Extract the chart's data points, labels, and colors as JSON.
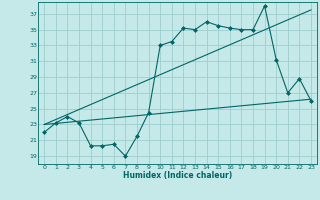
{
  "background_color": "#c5e8e8",
  "grid_color": "#9ecece",
  "line_color": "#006666",
  "xlabel": "Humidex (Indice chaleur)",
  "xlim": [
    -0.5,
    23.5
  ],
  "ylim": [
    18.0,
    38.5
  ],
  "yticks": [
    19,
    21,
    23,
    25,
    27,
    29,
    31,
    33,
    35,
    37
  ],
  "xticks": [
    0,
    1,
    2,
    3,
    4,
    5,
    6,
    7,
    8,
    9,
    10,
    11,
    12,
    13,
    14,
    15,
    16,
    17,
    18,
    19,
    20,
    21,
    22,
    23
  ],
  "series1_x": [
    0,
    1,
    2,
    3,
    4,
    5,
    6,
    7,
    8,
    9,
    10,
    11,
    12,
    13,
    14,
    15,
    16,
    17,
    18,
    19,
    20,
    21,
    22,
    23
  ],
  "series1_y": [
    22.0,
    23.2,
    24.0,
    23.2,
    20.3,
    20.3,
    20.5,
    19.0,
    21.5,
    24.5,
    33.0,
    33.5,
    35.2,
    35.0,
    36.0,
    35.5,
    35.2,
    35.0,
    35.0,
    38.0,
    31.2,
    27.0,
    28.8,
    26.0
  ],
  "series2_x": [
    0,
    23
  ],
  "series2_y": [
    23.0,
    26.2
  ],
  "series3_x": [
    0,
    23
  ],
  "series3_y": [
    23.0,
    37.5
  ],
  "marker_size": 2.5,
  "linewidth": 0.8,
  "tick_fontsize": 4.5,
  "xlabel_fontsize": 5.5
}
